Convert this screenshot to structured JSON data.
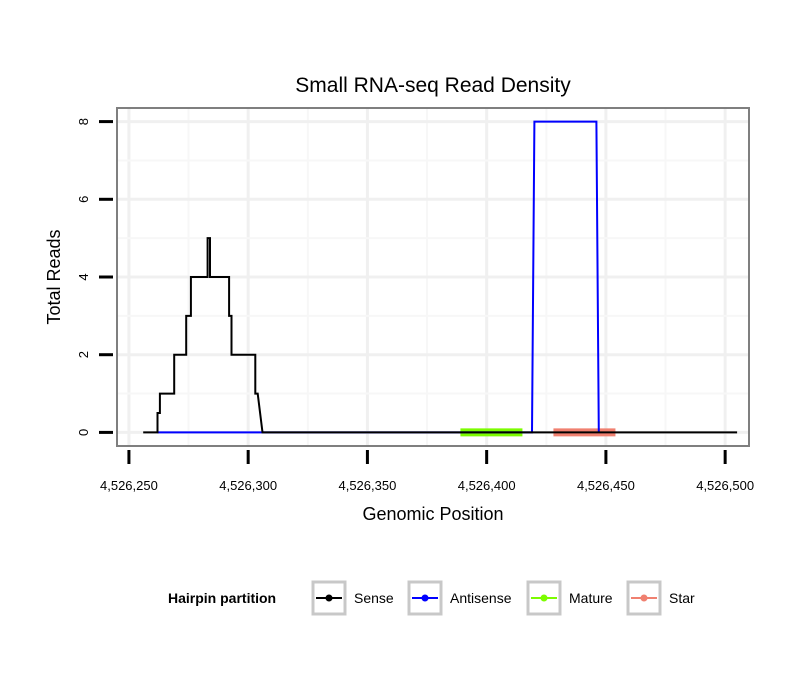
{
  "chart_data": {
    "type": "line",
    "title": "Small RNA-seq Read Density",
    "xlabel": "Genomic Position",
    "ylabel": "Total Reads",
    "xlim": [
      4526245,
      4526510
    ],
    "ylim": [
      -0.35,
      8.35
    ],
    "x_ticks": [
      4526250,
      4526300,
      4526350,
      4526400,
      4526450,
      4526500
    ],
    "x_tick_labels": [
      "4,526,250",
      "4,526,300",
      "4,526,350",
      "4,526,400",
      "4,526,450",
      "4,526,500"
    ],
    "y_ticks": [
      0,
      2,
      4,
      6,
      8
    ],
    "y_tick_labels": [
      "0",
      "2",
      "4",
      "6",
      "8"
    ],
    "grid": true,
    "legend_title": "Hairpin partition",
    "legend_position": "bottom",
    "series": [
      {
        "name": "Sense",
        "color": "#000000",
        "kind": "step",
        "x": [
          4526256,
          4526262,
          4526262,
          4526263,
          4526263,
          4526269,
          4526269,
          4526271,
          4526271,
          4526274,
          4526274,
          4526276,
          4526276,
          4526280,
          4526280,
          4526283,
          4526283,
          4526284,
          4526284,
          4526286,
          4526286,
          4526292,
          4526292,
          4526293,
          4526293,
          4526295,
          4526295,
          4526303,
          4526303,
          4526304,
          4526306,
          4526505
        ],
        "y": [
          0,
          0,
          0.5,
          0.5,
          1,
          1,
          2,
          2,
          2,
          2,
          3,
          3,
          4,
          4,
          4,
          4,
          5,
          5,
          4,
          4,
          4,
          4,
          3,
          3,
          2,
          2,
          2,
          2,
          1,
          1,
          0,
          0
        ]
      },
      {
        "name": "Antisense",
        "color": "#0000ff",
        "kind": "step",
        "x": [
          4526262,
          4526306,
          4526419,
          4526420,
          4526446,
          4526447
        ],
        "y": [
          0,
          0,
          0,
          8,
          8,
          0
        ]
      },
      {
        "name": "Mature",
        "color": "#7cfc00",
        "kind": "segment",
        "x": [
          4526389,
          4526415
        ],
        "y": [
          0,
          0
        ]
      },
      {
        "name": "Star",
        "color": "#f08070",
        "kind": "segment",
        "x": [
          4526428,
          4526454
        ],
        "y": [
          0,
          0
        ]
      }
    ]
  }
}
